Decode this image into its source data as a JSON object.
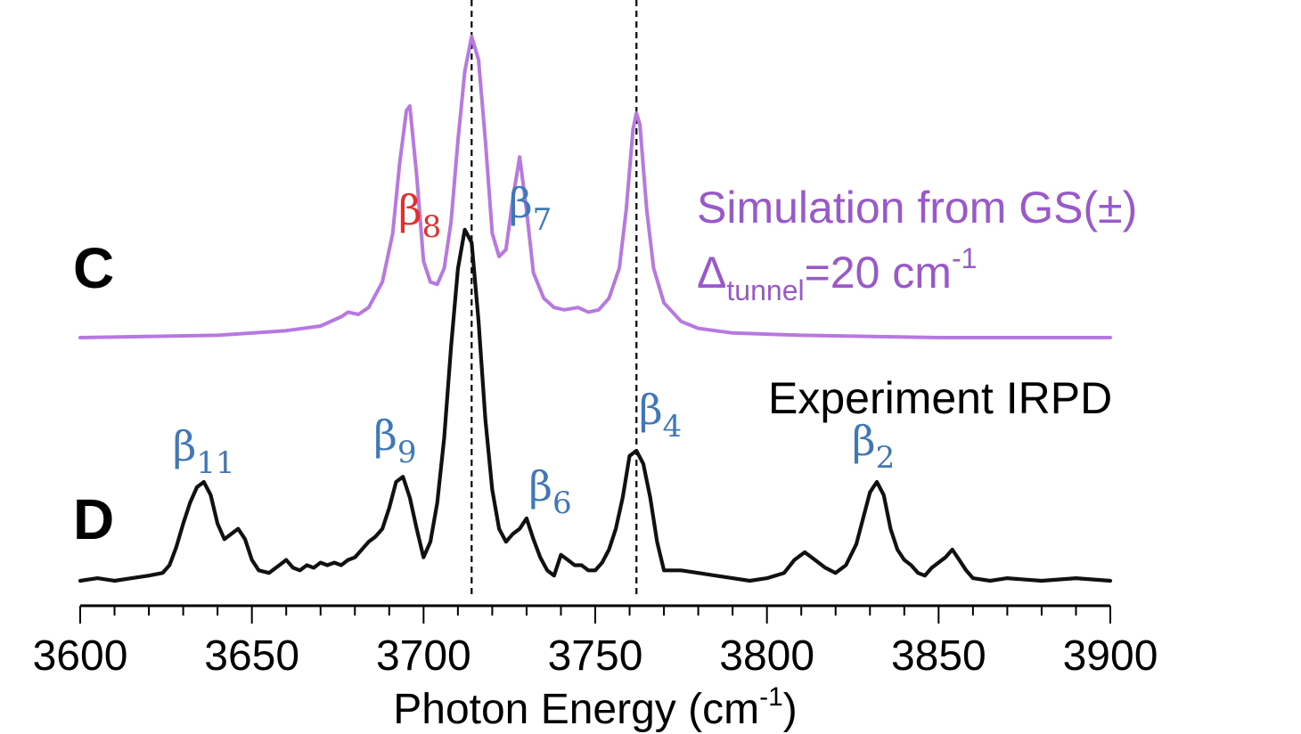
{
  "colors": {
    "simulation": "#b779e0",
    "simulation_text": "#9a59c9",
    "experiment": "#111111",
    "peak_label": "#3f78b8",
    "highlight_label": "#e2302c",
    "axis": "#000000"
  },
  "chart_data": {
    "type": "line",
    "xlabel": "Photon Energy (cm",
    "xlabel_sup": "-1",
    "xlabel_close": ")",
    "xlim": [
      3600,
      3900
    ],
    "xticks": [
      "3600",
      "3650",
      "3700",
      "3750",
      "3800",
      "3850",
      "3900"
    ],
    "x_ticks_values": [
      3600,
      3650,
      3700,
      3750,
      3800,
      3850,
      3900
    ],
    "x_minor_step": 10,
    "grid": false,
    "dashed_lines_x": [
      3714,
      3762
    ],
    "panel_letters": {
      "C": "C",
      "D": "D"
    },
    "simulation_caption": {
      "line1": "Simulation from GS(±)",
      "delta": "Δ",
      "delta_sub": "tunnel",
      "rest": "=20 cm",
      "sup": "-1"
    },
    "experiment_caption": "Experiment IRPD",
    "series": [
      {
        "key": "simulation",
        "color": "#b779e0",
        "x": [
          3600,
          3640,
          3660,
          3670,
          3676,
          3678,
          3681,
          3684,
          3688,
          3691,
          3693,
          3695,
          3696,
          3698,
          3700,
          3702,
          3704,
          3706,
          3708,
          3710,
          3712,
          3714,
          3716,
          3718,
          3720,
          3722,
          3724,
          3726,
          3728,
          3730,
          3732,
          3735,
          3738,
          3741,
          3745,
          3748,
          3751,
          3754,
          3757,
          3759,
          3761,
          3762,
          3763,
          3765,
          3767,
          3770,
          3775,
          3780,
          3790,
          3810,
          3850,
          3900
        ],
        "y": [
          0.0,
          0.01,
          0.03,
          0.05,
          0.09,
          0.11,
          0.1,
          0.13,
          0.24,
          0.45,
          0.75,
          0.98,
          1.0,
          0.7,
          0.33,
          0.24,
          0.23,
          0.3,
          0.5,
          0.85,
          1.15,
          1.3,
          1.2,
          0.85,
          0.45,
          0.35,
          0.38,
          0.6,
          0.78,
          0.55,
          0.28,
          0.17,
          0.13,
          0.12,
          0.13,
          0.11,
          0.12,
          0.17,
          0.3,
          0.55,
          0.9,
          0.97,
          0.92,
          0.55,
          0.3,
          0.15,
          0.07,
          0.04,
          0.02,
          0.01,
          0.0,
          0.0
        ]
      },
      {
        "key": "experiment",
        "color": "#111111",
        "x": [
          3600,
          3605,
          3610,
          3615,
          3620,
          3624,
          3626,
          3628,
          3630,
          3632,
          3634,
          3636,
          3638,
          3640,
          3642,
          3644,
          3646,
          3648,
          3650,
          3652,
          3655,
          3658,
          3660,
          3662,
          3664,
          3666,
          3668,
          3670,
          3672,
          3674,
          3676,
          3678,
          3680,
          3682,
          3684,
          3686,
          3688,
          3690,
          3692,
          3694,
          3696,
          3698,
          3700,
          3702,
          3704,
          3706,
          3708,
          3710,
          3712,
          3714,
          3716,
          3718,
          3720,
          3722,
          3724,
          3726,
          3728,
          3730,
          3732,
          3734,
          3736,
          3738,
          3740,
          3742,
          3744,
          3746,
          3748,
          3750,
          3752,
          3754,
          3756,
          3758,
          3760,
          3762,
          3764,
          3766,
          3768,
          3770,
          3775,
          3780,
          3785,
          3790,
          3795,
          3800,
          3805,
          3808,
          3811,
          3814,
          3817,
          3820,
          3823,
          3826,
          3828,
          3830,
          3832,
          3834,
          3836,
          3838,
          3840,
          3842,
          3844,
          3846,
          3848,
          3850,
          3852,
          3854,
          3856,
          3858,
          3860,
          3865,
          3870,
          3880,
          3890,
          3900
        ],
        "y": [
          0.0,
          0.01,
          0.0,
          0.01,
          0.02,
          0.03,
          0.06,
          0.13,
          0.22,
          0.3,
          0.36,
          0.38,
          0.33,
          0.22,
          0.16,
          0.18,
          0.2,
          0.16,
          0.08,
          0.04,
          0.03,
          0.06,
          0.08,
          0.05,
          0.04,
          0.06,
          0.05,
          0.07,
          0.06,
          0.07,
          0.06,
          0.08,
          0.09,
          0.12,
          0.15,
          0.17,
          0.2,
          0.28,
          0.38,
          0.4,
          0.32,
          0.2,
          0.09,
          0.15,
          0.3,
          0.55,
          0.9,
          1.2,
          1.35,
          1.3,
          1.0,
          0.62,
          0.35,
          0.2,
          0.15,
          0.18,
          0.2,
          0.24,
          0.16,
          0.09,
          0.04,
          0.02,
          0.1,
          0.08,
          0.06,
          0.06,
          0.04,
          0.04,
          0.07,
          0.12,
          0.2,
          0.32,
          0.48,
          0.5,
          0.45,
          0.32,
          0.15,
          0.04,
          0.04,
          0.03,
          0.02,
          0.01,
          0.0,
          0.01,
          0.03,
          0.08,
          0.11,
          0.08,
          0.05,
          0.03,
          0.06,
          0.14,
          0.24,
          0.34,
          0.38,
          0.33,
          0.2,
          0.12,
          0.08,
          0.06,
          0.03,
          0.02,
          0.05,
          0.07,
          0.09,
          0.12,
          0.08,
          0.04,
          0.01,
          0.0,
          0.01,
          0.0,
          0.01,
          0.0
        ]
      }
    ],
    "peak_labels": [
      {
        "base": "β",
        "sub": "11",
        "x": 3636,
        "y_exp": 0.36,
        "color_key": "peak_label"
      },
      {
        "base": "β",
        "sub": "9",
        "x": 3693,
        "y_exp": 0.4,
        "color_key": "peak_label"
      },
      {
        "base": "β",
        "sub": "8",
        "x": 3708,
        "y_exp": 1.35,
        "color_key": "highlight_label"
      },
      {
        "base": "β",
        "sub": "7",
        "x": 3722,
        "y_exp": 1.35,
        "color_key": "peak_label"
      },
      {
        "base": "β",
        "sub": "6",
        "x": 3733,
        "y_exp": 0.24,
        "color_key": "peak_label"
      },
      {
        "base": "β",
        "sub": "4",
        "x": 3770,
        "y_exp": 0.5,
        "color_key": "peak_label"
      },
      {
        "base": "β",
        "sub": "2",
        "x": 3831,
        "y_exp": 0.38,
        "color_key": "peak_label"
      }
    ]
  }
}
